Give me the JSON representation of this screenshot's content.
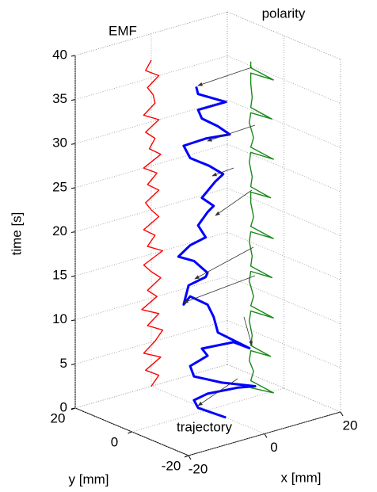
{
  "chart_data": {
    "type": "line3d",
    "zlabel": "time [s]",
    "ylabel": "y [mm]",
    "xlabel": "x [mm]",
    "xlim": [
      -20,
      20
    ],
    "ylim": [
      -20,
      20
    ],
    "zlim": [
      0,
      40
    ],
    "xticks": [
      -20,
      0,
      20
    ],
    "yticks": [
      -20,
      0,
      20
    ],
    "zticks": [
      0,
      5,
      10,
      15,
      20,
      25,
      30,
      35,
      40
    ],
    "grid": true,
    "series": [
      {
        "name": "EMF",
        "color": "#ff0000",
        "y": 20,
        "t": [
          0,
          1,
          2,
          3,
          4,
          5,
          6,
          7,
          8,
          9,
          10,
          11,
          12,
          13,
          14,
          15,
          16,
          17,
          18,
          19,
          20,
          21,
          22,
          23,
          24,
          25,
          26,
          27,
          28,
          29,
          30,
          31,
          32,
          33,
          34,
          35,
          36,
          37
        ],
        "x": [
          0,
          2,
          -1.5,
          2.5,
          -2,
          1,
          3,
          -1,
          2,
          -2.5,
          1.5,
          -1,
          2.5,
          0,
          -2,
          3,
          -1,
          1,
          -2,
          2,
          0,
          -1.5,
          2,
          -1,
          1.5,
          -2,
          2.5,
          -0.5,
          1,
          -1.5,
          2,
          -2,
          1,
          0.5,
          -1,
          2,
          -1.5,
          0
        ]
      },
      {
        "name": "polarity",
        "color": "#1a8a1a",
        "x": 15,
        "t": [
          0,
          0.5,
          0.8,
          2,
          3,
          4.2,
          4.5,
          4.8,
          6,
          7.5,
          8.7,
          9,
          9.3,
          10.5,
          12,
          13.2,
          13.5,
          13.8,
          15,
          16.5,
          17.7,
          18,
          18.3,
          19.5,
          21,
          22.2,
          22.5,
          22.8,
          24,
          25.5,
          26.7,
          27,
          27.3,
          28.5,
          30,
          31.2,
          31.5,
          31.8,
          33,
          34.5,
          35.7,
          36,
          36.3,
          37
        ],
        "y": [
          5,
          -3,
          5,
          4,
          5.5,
          5,
          -2,
          5,
          4.5,
          5.5,
          5,
          -3,
          5,
          4,
          5.5,
          5,
          -2.5,
          5,
          4.5,
          5.5,
          5,
          -3,
          5,
          4,
          5,
          5,
          -2,
          5,
          4.5,
          5.5,
          5,
          -3,
          5,
          4,
          5.5,
          5,
          -2.5,
          5,
          4.5,
          5,
          5,
          -3,
          5,
          5
        ]
      },
      {
        "name": "trajectory",
        "color": "#0000ff",
        "y": -5,
        "t": [
          -0.3,
          1.7,
          2.7,
          3,
          2.7,
          2.3,
          3.8,
          5.4,
          6.7,
          7.3,
          8.3,
          8,
          6.8,
          9.6,
          11.5,
          13.1,
          14.6,
          13.9,
          15.9,
          16.3,
          16.7,
          18.5,
          19.5,
          20.4,
          20.8,
          22.4,
          23.6,
          24.1,
          25.4,
          26.8,
          27.4,
          28.8,
          30.3,
          31.9,
          32,
          31.7,
          33,
          34.4,
          35.5,
          35.5,
          37.3,
          38.2
        ],
        "x": [
          1,
          -6.3,
          -7.4,
          -3.8,
          4.1,
          8.7,
          -0.1,
          -7.4,
          -8.4,
          -3.8,
          -5.3,
          3,
          7.2,
          -1.1,
          -2.2,
          -3.8,
          -8.4,
          -10.1,
          -8.8,
          -4.3,
          -3.8,
          -7.4,
          -11.5,
          -8.4,
          -4.3,
          -6.3,
          -3.8,
          -2.2,
          -5.3,
          -1.8,
          0.3,
          -3.4,
          -8.4,
          -10.1,
          -4.3,
          2,
          -1.1,
          -5.3,
          -6.3,
          1,
          -6.3,
          -6.8
        ]
      }
    ]
  }
}
